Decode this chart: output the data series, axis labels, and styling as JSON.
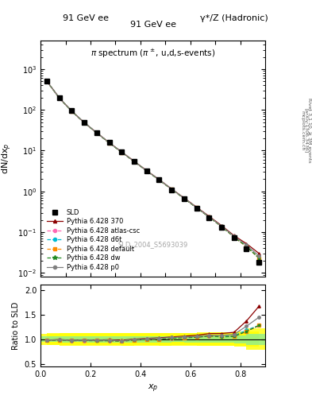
{
  "title_top": "91 GeV ee",
  "title_right": "γ*/Z (Hadronic)",
  "plot_title": "π spectrum (π±, u,d,s-events)",
  "xlabel": "x_p",
  "ylabel_main": "dN/dx_p",
  "ylabel_ratio": "Ratio to SLD",
  "watermark": "SLD_2004_S5693039",
  "right_label": "Rivet 3.1.10, ≥ 3M events",
  "right_label2": "[arXiv:1306.3436]",
  "mcplots_label": "mcplots.cern.ch",
  "xp": [
    0.025,
    0.075,
    0.125,
    0.175,
    0.225,
    0.275,
    0.325,
    0.375,
    0.425,
    0.475,
    0.525,
    0.575,
    0.625,
    0.675,
    0.725,
    0.775,
    0.825,
    0.875
  ],
  "sld_y": [
    520,
    200,
    95,
    50,
    28,
    16,
    9.5,
    5.5,
    3.2,
    1.9,
    1.1,
    0.65,
    0.38,
    0.22,
    0.13,
    0.072,
    0.038,
    0.018
  ],
  "sld_yerr": [
    30,
    12,
    6,
    3,
    1.8,
    1.0,
    0.6,
    0.35,
    0.2,
    0.12,
    0.07,
    0.04,
    0.025,
    0.015,
    0.009,
    0.005,
    0.003,
    0.002
  ],
  "py370_y": [
    510,
    198,
    93,
    49,
    27.5,
    15.8,
    9.3,
    5.5,
    3.25,
    1.95,
    1.15,
    0.69,
    0.41,
    0.245,
    0.145,
    0.082,
    0.052,
    0.03
  ],
  "py_atlas_y": [
    505,
    196,
    92,
    48.5,
    27.2,
    15.5,
    9.1,
    5.4,
    3.18,
    1.9,
    1.12,
    0.67,
    0.395,
    0.234,
    0.137,
    0.076,
    0.044,
    0.023
  ],
  "py_d6t_y": [
    508,
    197,
    92.5,
    49,
    27.3,
    15.6,
    9.15,
    5.42,
    3.2,
    1.91,
    1.13,
    0.675,
    0.398,
    0.236,
    0.138,
    0.077,
    0.045,
    0.023
  ],
  "py_default_y": [
    507,
    196.5,
    92.3,
    48.8,
    27.2,
    15.55,
    9.12,
    5.41,
    3.19,
    1.905,
    1.125,
    0.672,
    0.396,
    0.235,
    0.137,
    0.076,
    0.044,
    0.023
  ],
  "py_dw_y": [
    506,
    196,
    92,
    48.6,
    27.1,
    15.5,
    9.1,
    5.4,
    3.18,
    1.895,
    1.12,
    0.668,
    0.394,
    0.234,
    0.136,
    0.076,
    0.044,
    0.023
  ],
  "py_p0_y": [
    510,
    197.5,
    92.8,
    49.1,
    27.4,
    15.7,
    9.2,
    5.45,
    3.22,
    1.93,
    1.14,
    0.68,
    0.4,
    0.238,
    0.14,
    0.079,
    0.048,
    0.026
  ],
  "colors": {
    "sld": "#000000",
    "py370": "#8b0000",
    "py_atlas": "#ff69b4",
    "py_d6t": "#00bcd4",
    "py_default": "#ff8c00",
    "py_dw": "#228b22",
    "py_p0": "#808080"
  },
  "band_green_lo": [
    0.9,
    0.9,
    0.9,
    0.9,
    0.9,
    0.9,
    0.9,
    0.9,
    0.9,
    0.9,
    0.9,
    0.9,
    0.9,
    0.9,
    0.9,
    0.9,
    0.9,
    0.9
  ],
  "band_green_hi": [
    1.1,
    1.1,
    1.1,
    1.1,
    1.1,
    1.1,
    1.1,
    1.1,
    1.1,
    1.1,
    1.1,
    1.1,
    1.1,
    1.1,
    1.1,
    1.1,
    1.1,
    1.1
  ],
  "band_yellow_lo": [
    0.8,
    0.8,
    0.8,
    0.8,
    0.8,
    0.8,
    0.8,
    0.8,
    0.8,
    0.8,
    0.8,
    0.8,
    0.8,
    0.8,
    0.8,
    0.8,
    0.8,
    0.8
  ],
  "band_yellow_hi": [
    1.2,
    1.2,
    1.2,
    1.2,
    1.2,
    1.2,
    1.2,
    1.2,
    1.2,
    1.2,
    1.2,
    1.2,
    1.2,
    1.2,
    1.2,
    1.2,
    1.2,
    1.2
  ],
  "xlim": [
    0,
    0.9
  ],
  "ylim_main": [
    0.008,
    5000
  ],
  "ylim_ratio": [
    0.45,
    2.1
  ]
}
